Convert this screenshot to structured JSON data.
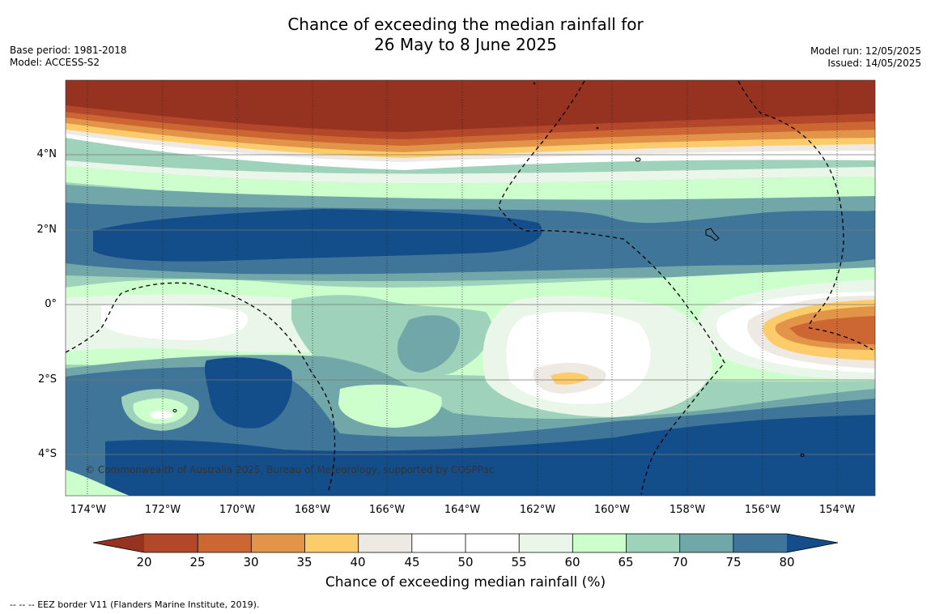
{
  "title": {
    "line1": "Chance of exceeding the median rainfall for",
    "line2": "26 May to 8 June 2025"
  },
  "meta": {
    "base_period": "Base period: 1981-2018",
    "model": "Model: ACCESS-S2",
    "model_run": "Model run: 12/05/2025",
    "issued": "Issued: 14/05/2025"
  },
  "map": {
    "lon_labels": [
      "174°W",
      "172°W",
      "170°W",
      "168°W",
      "166°W",
      "164°W",
      "162°W",
      "160°W",
      "158°W",
      "156°W",
      "154°W"
    ],
    "lat_labels": [
      "4°N",
      "2°N",
      "0°",
      "2°S",
      "4°S"
    ],
    "copyright": "© Commonwealth of Australia 2025, Bureau of Meteorology, supported by COSPPac"
  },
  "colorbar": {
    "ticks": [
      "20",
      "25",
      "30",
      "35",
      "40",
      "45",
      "50",
      "55",
      "60",
      "65",
      "70",
      "75",
      "80"
    ],
    "label": "Chance of exceeding median rainfall (%)",
    "colors": {
      "below_20": "#963220",
      "20_25": "#b3472a",
      "25_30": "#cc6633",
      "30_35": "#e29448",
      "35_40": "#fdcc6a",
      "40_45": "#efe9e4",
      "45_50": "#ffffff",
      "50_55": "#ffffff",
      "55_60": "#eaf6ea",
      "60_65": "#ccffcc",
      "65_70": "#9ed2bb",
      "70_75": "#71a7a8",
      "75_80": "#3f7599",
      "above_80": "#134e8a"
    }
  },
  "footer": {
    "note": "--  --  -- EEZ border V11 (Flanders Marine Institute, 2019)."
  }
}
